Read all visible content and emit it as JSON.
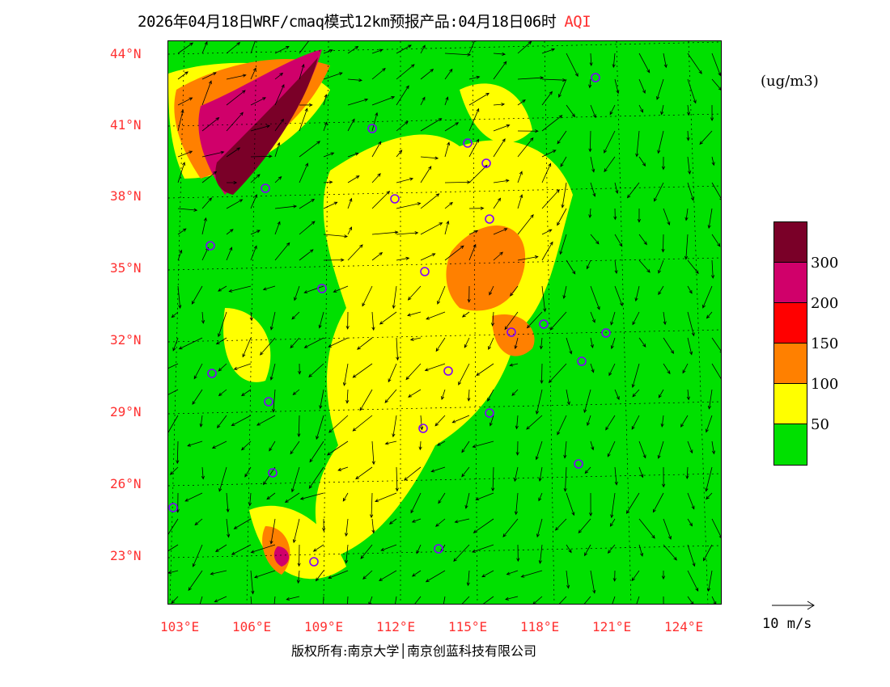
{
  "title": {
    "main": "2026年04月18日WRF/cmaq模式12km预报产品:04月18日06时",
    "variable": "AQI"
  },
  "axes": {
    "lat_labels": [
      "44°N",
      "41°N",
      "38°N",
      "35°N",
      "32°N",
      "29°N",
      "26°N",
      "23°N"
    ],
    "lon_labels": [
      "103°E",
      "106°E",
      "109°E",
      "112°E",
      "115°E",
      "118°E",
      "121°E",
      "124°E"
    ]
  },
  "legend": {
    "unit": "(ug/m3)",
    "colors": [
      "#7a0028",
      "#d0006a",
      "#ff0000",
      "#ff8000",
      "#ffff00",
      "#00e000"
    ],
    "ticks": [
      "300",
      "200",
      "150",
      "100",
      "50"
    ]
  },
  "wind_scale": {
    "label": "10 m/s"
  },
  "copyright": "版权所有:南京大学│南京创蓝科技有限公司"
}
